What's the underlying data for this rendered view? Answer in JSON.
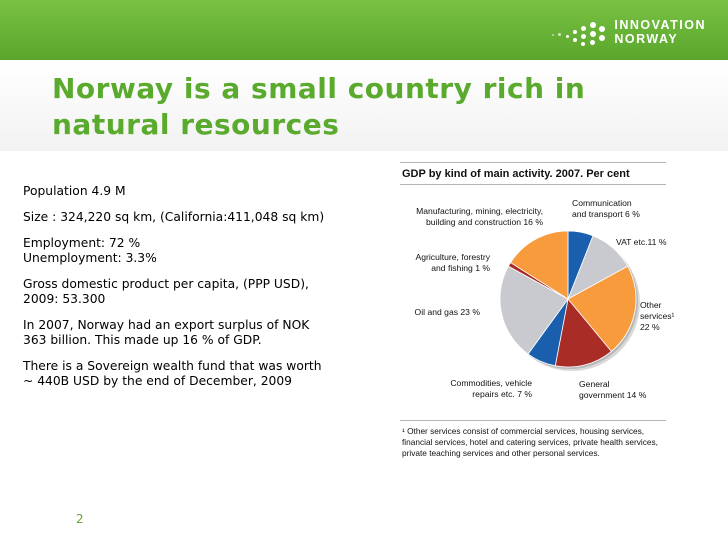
{
  "brand": {
    "line1": "INNOVATION",
    "line2": "NORWAY",
    "accent_color": "#5aaa2e"
  },
  "slide": {
    "title_line1": "Norway is a small country rich in",
    "title_line2": "natural resources",
    "page_number": "2"
  },
  "facts": [
    {
      "lines": [
        "Population 4.9 M"
      ]
    },
    {
      "lines": [
        "Size : 324,220 sq km, (California:411,048 sq km)"
      ]
    },
    {
      "lines": [
        "Employment:  72 %",
        "Unemployment:  3.3%"
      ]
    },
    {
      "lines": [
        "Gross domestic product per capita, (PPP USD),",
        "2009: 53.300"
      ]
    },
    {
      "lines": [
        "In 2007, Norway had an export surplus of NOK",
        "363 billion. This made up 16 % of GDP."
      ]
    },
    {
      "lines": [
        "There is a Sovereign wealth fund that was worth",
        "~ 440B USD by the end of December, 2009"
      ]
    }
  ],
  "chart_data": {
    "type": "pie",
    "title": "GDP by kind of main activity. 2007. Per cent",
    "categories": [
      "Communication and transport",
      "VAT etc.",
      "Other services",
      "General government",
      "Commodities, vehicle repairs etc.",
      "Oil and gas",
      "Agriculture, forestry and fishing",
      "Manufacturing, mining, electricity, building and construction"
    ],
    "values": [
      6,
      11,
      22,
      14,
      7,
      23,
      1,
      16
    ],
    "colors": [
      "#1a5fae",
      "#c8cacf",
      "#f79b3c",
      "#aa2c26",
      "#1a5fae",
      "#c8cacf",
      "#aa2c26",
      "#f79b3c"
    ],
    "labels": [
      [
        "Communication",
        "and transport 6 %"
      ],
      [
        "VAT etc.11 %"
      ],
      [
        "Other",
        "services¹",
        "22 %"
      ],
      [
        "General",
        "government 14 %"
      ],
      [
        "Commodities, vehicle",
        "repairs etc. 7 %"
      ],
      [
        "Oil and gas 23 %"
      ],
      [
        "Agriculture, forestry",
        "and fishing 1 %"
      ],
      [
        "Manufacturing, mining, electricity,",
        "building and construction 16 %"
      ]
    ],
    "footnote": [
      "¹ Other services consist of commercial services, housing services,",
      "financial services, hotel and catering services, private health services,",
      "private teaching services and other personal services."
    ]
  }
}
